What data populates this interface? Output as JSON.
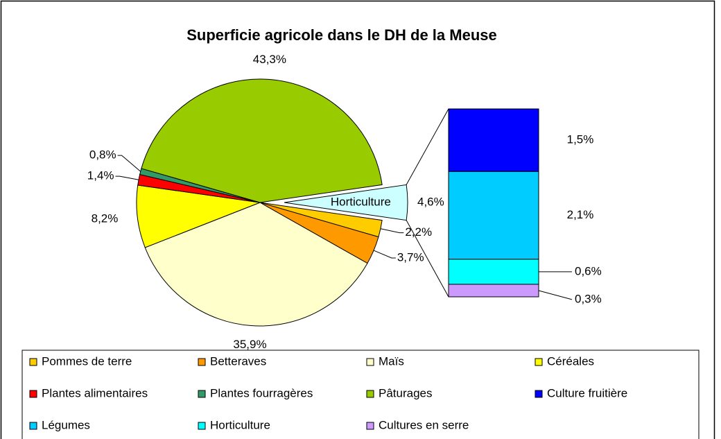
{
  "chart_data": {
    "type": "pie",
    "title": "Superficie agricole dans le DH de la Meuse",
    "group": {
      "name": "Horticulture",
      "value": 4.6,
      "value_label": "4,6%",
      "color": "#ccffff"
    },
    "slices": [
      {
        "name": "Pommes de terre",
        "value": 2.2,
        "value_label": "2,2%",
        "color": "#ffcc00"
      },
      {
        "name": "Betteraves",
        "value": 3.7,
        "value_label": "3,7%",
        "color": "#ff9900"
      },
      {
        "name": "Maïs",
        "value": 35.9,
        "value_label": "35,9%",
        "color": "#ffffcc"
      },
      {
        "name": "Céréales",
        "value": 8.2,
        "value_label": "8,2%",
        "color": "#ffff00"
      },
      {
        "name": "Plantes alimentaires",
        "value": 1.4,
        "value_label": "1,4%",
        "color": "#ff0000"
      },
      {
        "name": "Plantes fourragères",
        "value": 0.8,
        "value_label": "0,8%",
        "color": "#339966"
      },
      {
        "name": "Pâturages",
        "value": 43.3,
        "value_label": "43,3%",
        "color": "#99cc00"
      }
    ],
    "bar_slices": [
      {
        "name": "Culture fruitière",
        "value": 1.5,
        "value_label": "1,5%",
        "color": "#0000ff"
      },
      {
        "name": "Légumes",
        "value": 2.1,
        "value_label": "2,1%",
        "color": "#00ccff"
      },
      {
        "name": "Horticulture",
        "value": 0.6,
        "value_label": "0,6%",
        "color": "#00ffff"
      },
      {
        "name": "Cultures en serre",
        "value": 0.3,
        "value_label": "0,3%",
        "color": "#cc99ff"
      }
    ]
  }
}
